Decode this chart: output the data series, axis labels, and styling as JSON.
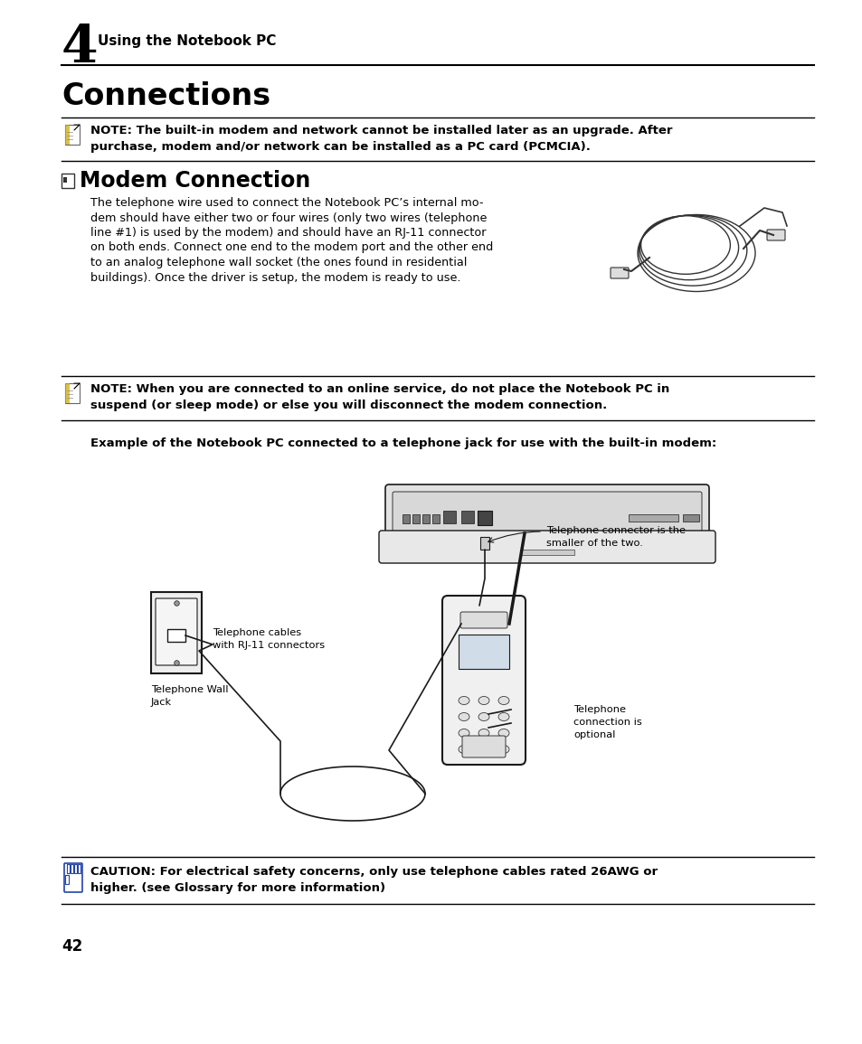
{
  "bg_color": "#ffffff",
  "chapter_number": "4",
  "chapter_title": "Using the Notebook PC",
  "section_title": "Connections",
  "subsection_title": "Modem Connection",
  "body_text_lines": [
    "The telephone wire used to connect the Notebook PC’s internal mo-",
    "dem should have either two or four wires (only two wires (telephone",
    "line #1) is used by the modem) and should have an RJ-11 connector",
    "on both ends. Connect one end to the modem port and the other end",
    "to an analog telephone wall socket (the ones found in residential",
    "buildings). Once the driver is setup, the modem is ready to use."
  ],
  "note1_line1": "NOTE: The built-in modem and network cannot be installed later as an upgrade. After",
  "note1_line2": "purchase, modem and/or network can be installed as a PC card (PCMCIA).",
  "note2_line1": "NOTE: When you are connected to an online service, do not place the Notebook PC in",
  "note2_line2": "suspend (or sleep mode) or else you will disconnect the modem connection.",
  "example_text": "Example of the Notebook PC connected to a telephone jack for use with the built-in modem:",
  "caution_line1": "CAUTION: For electrical safety concerns, only use telephone cables rated 26AWG or",
  "caution_line2": "higher. (see Glossary for more information)",
  "page_number": "42",
  "label_telephone_connector_1": "Telephone connector is the",
  "label_telephone_connector_2": "smaller of the two.",
  "label_telephone_cables_1": "Telephone cables",
  "label_telephone_cables_2": "with RJ-11 connectors",
  "label_telephone_wall_1": "Telephone Wall",
  "label_telephone_wall_2": "Jack",
  "label_telephone_connection_1": "Telephone",
  "label_telephone_connection_2": "connection is",
  "label_telephone_connection_3": "optional",
  "text_color": "#000000",
  "line_color": "#000000",
  "diagram_color": "#1a1a1a"
}
